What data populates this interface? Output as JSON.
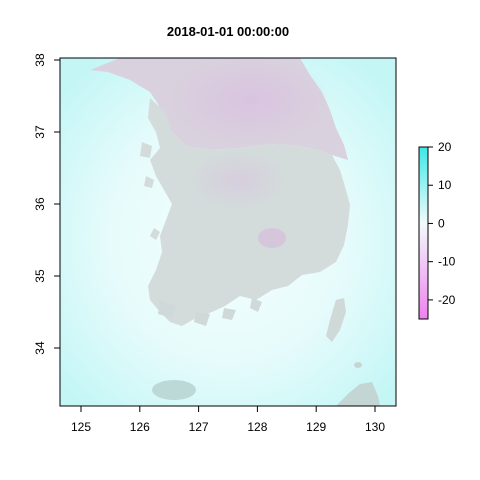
{
  "title": "2018-01-01 00:00:00",
  "map": {
    "x_ticks": [
      "125",
      "126",
      "127",
      "128",
      "129",
      "130"
    ],
    "y_ticks": [
      "34",
      "35",
      "36",
      "37",
      "38"
    ],
    "x_range": [
      124.65,
      130.35
    ],
    "y_range": [
      33.2,
      38.0
    ],
    "ocean_color_center": "#e9fbfb",
    "ocean_color_edge": "#c3f6f6",
    "land_color": "#d2dcdb",
    "cold_color": "#dcc6e2"
  },
  "colorbar": {
    "ticks": [
      "20",
      "10",
      "0",
      "-10",
      "-20"
    ],
    "range": [
      -25,
      20
    ],
    "colors": [
      "#ee82ee",
      "#ffffff",
      "#00ffff"
    ]
  }
}
